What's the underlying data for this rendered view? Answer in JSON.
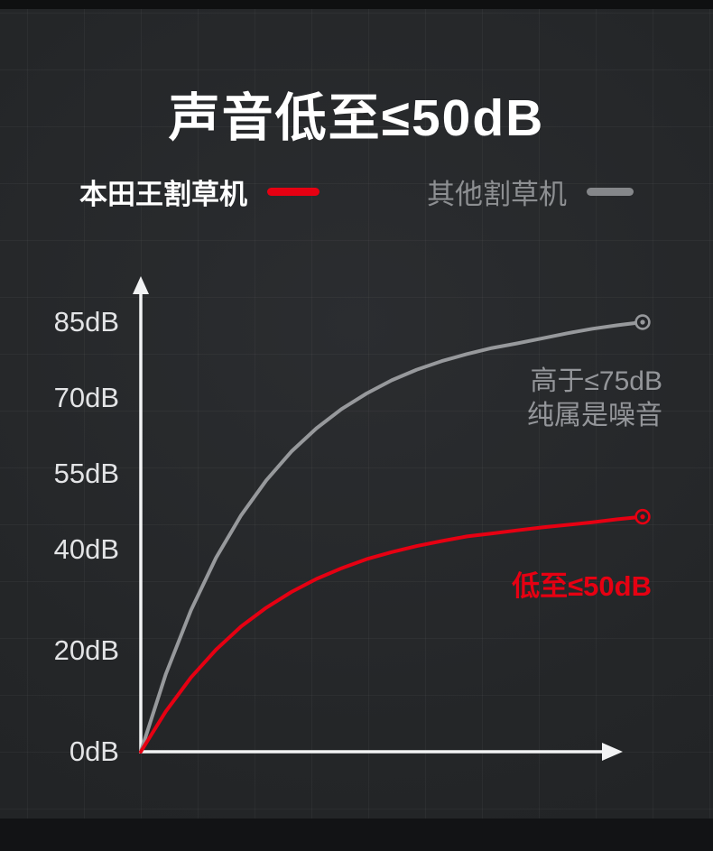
{
  "page": {
    "background": "#242628",
    "accent_red": "#e60012",
    "muted_gray": "#94969a"
  },
  "header": {
    "title": "声音低至≤50dB"
  },
  "legend": {
    "series1": {
      "label": "本田王割草机",
      "color": "#e60012"
    },
    "series2": {
      "label": "其他割草机",
      "color": "#85878a"
    }
  },
  "chart_data": {
    "type": "line",
    "title": "声音低至≤50dB",
    "xlabel": "",
    "ylabel": "dB",
    "ylim": [
      0,
      92
    ],
    "grid": true,
    "legend_position": "top",
    "y_ticks": [
      {
        "label": "85dB",
        "value": 85
      },
      {
        "label": "70dB",
        "value": 70
      },
      {
        "label": "55dB",
        "value": 55
      },
      {
        "label": "40dB",
        "value": 40
      },
      {
        "label": "20dB",
        "value": 20
      },
      {
        "label": "0dB",
        "value": 0
      }
    ],
    "series": [
      {
        "name": "其他割草机",
        "color": "#97999c",
        "end_value_dB": 85,
        "annotation": [
          "高于≤75dB",
          "纯属是噪音"
        ],
        "points": [
          [
            0,
            0
          ],
          [
            0.05,
            15.4
          ],
          [
            0.1,
            28.0
          ],
          [
            0.15,
            38.4
          ],
          [
            0.2,
            46.8
          ],
          [
            0.25,
            53.7
          ],
          [
            0.3,
            59.4
          ],
          [
            0.35,
            64.0
          ],
          [
            0.4,
            67.8
          ],
          [
            0.45,
            70.9
          ],
          [
            0.5,
            73.5
          ],
          [
            0.55,
            75.6
          ],
          [
            0.6,
            77.3
          ],
          [
            0.65,
            78.7
          ],
          [
            0.7,
            79.9
          ],
          [
            0.75,
            80.8
          ],
          [
            0.8,
            81.8
          ],
          [
            0.85,
            82.8
          ],
          [
            0.9,
            83.7
          ],
          [
            0.95,
            84.4
          ],
          [
            1,
            85
          ]
        ]
      },
      {
        "name": "本田王割草机",
        "color": "#e60012",
        "end_value_dB": 46.5,
        "annotation": [
          "低至≤50dB"
        ],
        "points": [
          [
            0,
            0
          ],
          [
            0.05,
            8.0
          ],
          [
            0.1,
            14.7
          ],
          [
            0.15,
            20.2
          ],
          [
            0.2,
            24.8
          ],
          [
            0.25,
            28.5
          ],
          [
            0.3,
            31.6
          ],
          [
            0.35,
            34.2
          ],
          [
            0.4,
            36.3
          ],
          [
            0.45,
            38.1
          ],
          [
            0.5,
            39.5
          ],
          [
            0.55,
            40.7
          ],
          [
            0.6,
            41.7
          ],
          [
            0.65,
            42.6
          ],
          [
            0.7,
            43.2
          ],
          [
            0.75,
            43.8
          ],
          [
            0.8,
            44.4
          ],
          [
            0.85,
            44.9
          ],
          [
            0.9,
            45.4
          ],
          [
            0.95,
            46.0
          ],
          [
            1,
            46.5
          ]
        ]
      }
    ]
  }
}
